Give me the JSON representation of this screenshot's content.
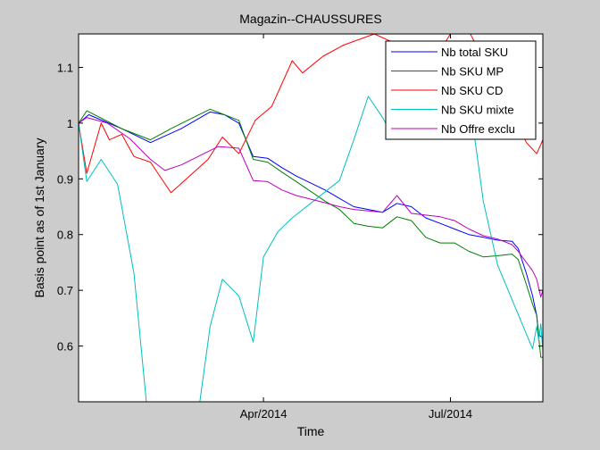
{
  "chart_data": {
    "type": "line",
    "title": "Magazin--CHAUSSURES",
    "xlabel": "Time",
    "ylabel": "Basis point as of 1st January",
    "xlim": [
      "2014-01-01",
      "2014-08-15"
    ],
    "ylim": [
      0.5,
      1.16
    ],
    "xticks": [
      {
        "date": "2014-04-01",
        "label": "Apr/2014"
      },
      {
        "date": "2014-07-01",
        "label": "Jul/2014"
      }
    ],
    "yticks": [
      {
        "value": 0.6,
        "label": "0.6"
      },
      {
        "value": 0.7,
        "label": "0.7"
      },
      {
        "value": 0.8,
        "label": "0.8"
      },
      {
        "value": 0.9,
        "label": "0.9"
      },
      {
        "value": 1.0,
        "label": "1"
      },
      {
        "value": 1.1,
        "label": "1.1"
      }
    ],
    "grid": false,
    "legend_position": "top-right",
    "series": [
      {
        "name": "Nb total SKU",
        "color": "#0000ff",
        "points": [
          [
            "2014-01-01",
            1.0
          ],
          [
            "2014-01-06",
            1.015
          ],
          [
            "2014-01-22",
            0.99
          ],
          [
            "2014-02-05",
            0.965
          ],
          [
            "2014-02-20",
            0.99
          ],
          [
            "2014-03-06",
            1.02
          ],
          [
            "2014-03-13",
            1.015
          ],
          [
            "2014-03-20",
            1.0
          ],
          [
            "2014-03-27",
            0.94
          ],
          [
            "2014-04-03",
            0.937
          ],
          [
            "2014-04-10",
            0.92
          ],
          [
            "2014-04-17",
            0.905
          ],
          [
            "2014-05-01",
            0.88
          ],
          [
            "2014-05-08",
            0.865
          ],
          [
            "2014-05-15",
            0.85
          ],
          [
            "2014-05-22",
            0.845
          ],
          [
            "2014-05-29",
            0.84
          ],
          [
            "2014-06-05",
            0.856
          ],
          [
            "2014-06-12",
            0.85
          ],
          [
            "2014-06-19",
            0.83
          ],
          [
            "2014-06-26",
            0.82
          ],
          [
            "2014-07-03",
            0.81
          ],
          [
            "2014-07-10",
            0.8
          ],
          [
            "2014-07-17",
            0.795
          ],
          [
            "2014-07-24",
            0.79
          ],
          [
            "2014-07-31",
            0.788
          ],
          [
            "2014-08-03",
            0.775
          ],
          [
            "2014-08-07",
            0.73
          ],
          [
            "2014-08-10",
            0.69
          ],
          [
            "2014-08-12",
            0.655
          ],
          [
            "2014-08-13",
            0.62
          ],
          [
            "2014-08-15",
            0.615
          ]
        ]
      },
      {
        "name": "Nb SKU MP",
        "color": "#007f00",
        "points": [
          [
            "2014-01-01",
            1.0
          ],
          [
            "2014-01-05",
            1.022
          ],
          [
            "2014-01-22",
            0.99
          ],
          [
            "2014-02-05",
            0.97
          ],
          [
            "2014-02-15",
            0.99
          ],
          [
            "2014-03-06",
            1.025
          ],
          [
            "2014-03-13",
            1.015
          ],
          [
            "2014-03-20",
            1.005
          ],
          [
            "2014-03-27",
            0.935
          ],
          [
            "2014-04-03",
            0.93
          ],
          [
            "2014-04-10",
            0.912
          ],
          [
            "2014-04-17",
            0.895
          ],
          [
            "2014-05-01",
            0.86
          ],
          [
            "2014-05-08",
            0.845
          ],
          [
            "2014-05-15",
            0.82
          ],
          [
            "2014-05-22",
            0.815
          ],
          [
            "2014-05-29",
            0.812
          ],
          [
            "2014-06-05",
            0.832
          ],
          [
            "2014-06-12",
            0.825
          ],
          [
            "2014-06-19",
            0.795
          ],
          [
            "2014-06-26",
            0.785
          ],
          [
            "2014-07-03",
            0.785
          ],
          [
            "2014-07-10",
            0.77
          ],
          [
            "2014-07-17",
            0.76
          ],
          [
            "2014-07-24",
            0.762
          ],
          [
            "2014-07-31",
            0.765
          ],
          [
            "2014-08-03",
            0.755
          ],
          [
            "2014-08-07",
            0.71
          ],
          [
            "2014-08-10",
            0.675
          ],
          [
            "2014-08-12",
            0.655
          ],
          [
            "2014-08-13",
            0.615
          ],
          [
            "2014-08-14",
            0.58
          ],
          [
            "2014-08-15",
            0.58
          ]
        ]
      },
      {
        "name": "Nb SKU CD",
        "color": "#ff0000",
        "points": [
          [
            "2014-01-01",
            1.0
          ],
          [
            "2014-01-05",
            0.91
          ],
          [
            "2014-01-12",
            1.0
          ],
          [
            "2014-01-16",
            0.97
          ],
          [
            "2014-01-22",
            0.98
          ],
          [
            "2014-01-28",
            0.94
          ],
          [
            "2014-02-05",
            0.93
          ],
          [
            "2014-02-15",
            0.875
          ],
          [
            "2014-03-05",
            0.935
          ],
          [
            "2014-03-12",
            0.975
          ],
          [
            "2014-03-20",
            0.945
          ],
          [
            "2014-03-28",
            1.005
          ],
          [
            "2014-04-05",
            1.03
          ],
          [
            "2014-04-15",
            1.112
          ],
          [
            "2014-04-20",
            1.09
          ],
          [
            "2014-04-30",
            1.12
          ],
          [
            "2014-05-10",
            1.14
          ],
          [
            "2014-05-25",
            1.16
          ],
          [
            "2014-06-12",
            1.13
          ],
          [
            "2014-06-18",
            1.11
          ],
          [
            "2014-06-22",
            1.13
          ],
          [
            "2014-06-25",
            1.125
          ],
          [
            "2014-07-01",
            1.16
          ],
          [
            "2014-07-10",
            1.165
          ],
          [
            "2014-08-07",
            0.965
          ],
          [
            "2014-08-12",
            0.945
          ],
          [
            "2014-08-15",
            0.97
          ]
        ]
      },
      {
        "name": "Nb SKU mixte",
        "color": "#00bfbf",
        "points": [
          [
            "2014-01-01",
            1.0
          ],
          [
            "2014-01-05",
            0.895
          ],
          [
            "2014-01-12",
            0.935
          ],
          [
            "2014-01-20",
            0.89
          ],
          [
            "2014-01-28",
            0.73
          ],
          [
            "2014-02-03",
            0.5
          ],
          [
            "2014-03-01",
            0.5
          ],
          [
            "2014-03-06",
            0.635
          ],
          [
            "2014-03-12",
            0.72
          ],
          [
            "2014-03-20",
            0.69
          ],
          [
            "2014-03-27",
            0.607
          ],
          [
            "2014-04-01",
            0.76
          ],
          [
            "2014-04-08",
            0.805
          ],
          [
            "2014-04-15",
            0.83
          ],
          [
            "2014-05-08",
            0.897
          ],
          [
            "2014-05-15",
            0.97
          ],
          [
            "2014-05-22",
            1.048
          ],
          [
            "2014-05-29",
            1.01
          ],
          [
            "2014-06-01",
            0.99
          ],
          [
            "2014-06-05",
            1.02
          ],
          [
            "2014-06-12",
            1.1
          ],
          [
            "2014-06-18",
            1.05
          ],
          [
            "2014-07-10",
            1.05
          ],
          [
            "2014-07-17",
            0.86
          ],
          [
            "2014-07-24",
            0.745
          ],
          [
            "2014-08-10",
            0.595
          ],
          [
            "2014-08-12",
            0.635
          ],
          [
            "2014-08-13",
            0.61
          ],
          [
            "2014-08-14",
            0.64
          ],
          [
            "2014-08-15",
            0.59
          ]
        ]
      },
      {
        "name": "Nb Offre exclu",
        "color": "#bf00bf",
        "points": [
          [
            "2014-01-01",
            1.0
          ],
          [
            "2014-01-05",
            1.01
          ],
          [
            "2014-01-15",
            1.0
          ],
          [
            "2014-01-26",
            0.972
          ],
          [
            "2014-02-05",
            0.935
          ],
          [
            "2014-02-12",
            0.915
          ],
          [
            "2014-02-20",
            0.925
          ],
          [
            "2014-03-10",
            0.958
          ],
          [
            "2014-03-20",
            0.955
          ],
          [
            "2014-03-27",
            0.897
          ],
          [
            "2014-04-03",
            0.895
          ],
          [
            "2014-04-10",
            0.88
          ],
          [
            "2014-04-17",
            0.87
          ],
          [
            "2014-05-01",
            0.857
          ],
          [
            "2014-05-08",
            0.85
          ],
          [
            "2014-05-15",
            0.845
          ],
          [
            "2014-05-29",
            0.84
          ],
          [
            "2014-06-05",
            0.87
          ],
          [
            "2014-06-12",
            0.838
          ],
          [
            "2014-06-19",
            0.835
          ],
          [
            "2014-06-26",
            0.832
          ],
          [
            "2014-07-03",
            0.825
          ],
          [
            "2014-07-10",
            0.81
          ],
          [
            "2014-07-17",
            0.798
          ],
          [
            "2014-07-24",
            0.792
          ],
          [
            "2014-07-31",
            0.782
          ],
          [
            "2014-08-03",
            0.77
          ],
          [
            "2014-08-07",
            0.75
          ],
          [
            "2014-08-10",
            0.735
          ],
          [
            "2014-08-12",
            0.72
          ],
          [
            "2014-08-14",
            0.688
          ],
          [
            "2014-08-15",
            0.7
          ]
        ]
      }
    ]
  }
}
